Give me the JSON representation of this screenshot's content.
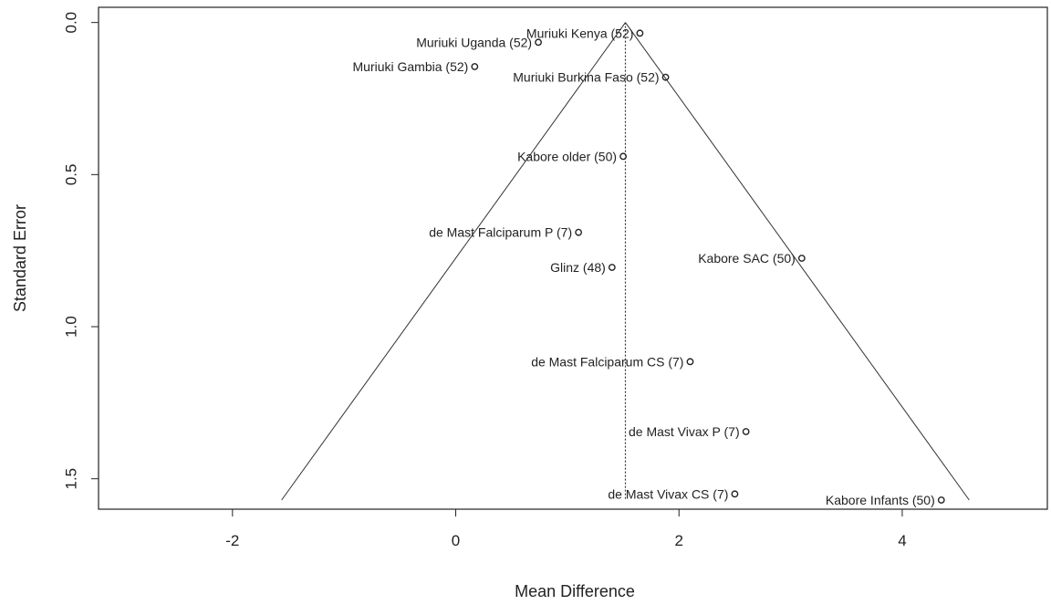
{
  "chart_data": {
    "type": "scatter",
    "xlabel": "Mean Difference",
    "ylabel": "Standard Error",
    "xlim": [
      -3.2,
      5.3
    ],
    "ylim": [
      1.6,
      -0.05
    ],
    "y_reversed": true,
    "x_ticks": [
      -2,
      0,
      2,
      4
    ],
    "x_tick_labels": [
      "-2",
      "0",
      "2",
      "4"
    ],
    "y_ticks": [
      0.0,
      0.5,
      1.0,
      1.5
    ],
    "y_tick_labels": [
      "0.0",
      "0.5",
      "1.0",
      "1.5"
    ],
    "grid": false,
    "funnel": {
      "center": 1.52,
      "apex_se": 0.0,
      "base_se": 1.57,
      "left_at_base": -1.56,
      "right_at_base": 4.6
    },
    "points": [
      {
        "label": "Muriuki Kenya (52)",
        "x": 1.65,
        "y": 0.035,
        "label_side": "left"
      },
      {
        "label": "Muriuki Uganda (52)",
        "x": 0.74,
        "y": 0.065,
        "label_side": "left"
      },
      {
        "label": "Muriuki Gambia (52)",
        "x": 0.17,
        "y": 0.145,
        "label_side": "left"
      },
      {
        "label": "Muriuki Burkina Faso (52)",
        "x": 1.88,
        "y": 0.18,
        "label_side": "left"
      },
      {
        "label": "Kabore older (50)",
        "x": 1.5,
        "y": 0.44,
        "label_side": "left"
      },
      {
        "label": "de Mast Falciparum P (7)",
        "x": 1.1,
        "y": 0.69,
        "label_side": "left"
      },
      {
        "label": "Kabore SAC (50)",
        "x": 3.1,
        "y": 0.775,
        "label_side": "left"
      },
      {
        "label": "Glinz (48)",
        "x": 1.4,
        "y": 0.805,
        "label_side": "left"
      },
      {
        "label": "de Mast Falciparum CS (7)",
        "x": 2.1,
        "y": 1.115,
        "label_side": "left"
      },
      {
        "label": "de Mast Vivax P (7)",
        "x": 2.6,
        "y": 1.345,
        "label_side": "left"
      },
      {
        "label": "de Mast Vivax CS (7)",
        "x": 2.5,
        "y": 1.55,
        "label_side": "left"
      },
      {
        "label": "Kabore Infants (50)",
        "x": 4.35,
        "y": 1.57,
        "label_side": "left"
      }
    ]
  }
}
